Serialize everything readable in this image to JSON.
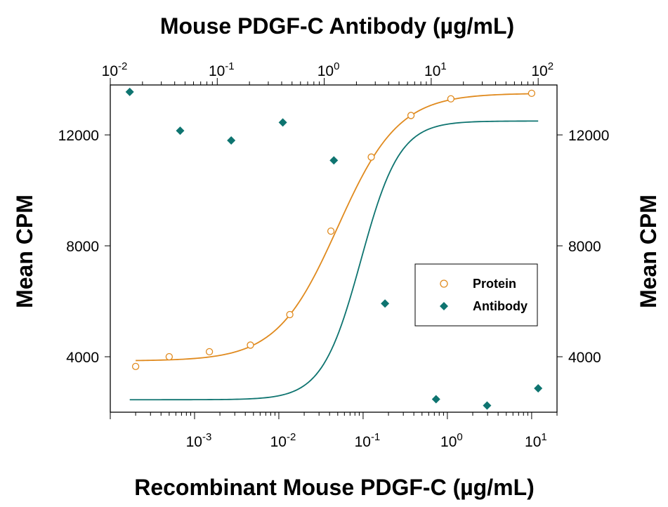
{
  "chart_data": {
    "type": "scatter",
    "top_axis_title": "Mouse PDGF-C Antibody (µg/mL)",
    "bottom_axis_title": "Recombinant Mouse PDGF-C (µg/mL)",
    "left_axis_title": "Mean CPM",
    "right_axis_title": "Mean CPM",
    "bottom_xlim": [
      0.0001,
      20
    ],
    "bottom_scale": "log",
    "bottom_ticks": [
      {
        "value": 0.001,
        "base": "10",
        "exp": "-3"
      },
      {
        "value": 0.01,
        "base": "10",
        "exp": "-2"
      },
      {
        "value": 0.1,
        "base": "10",
        "exp": "-1"
      },
      {
        "value": 1,
        "base": "10",
        "exp": "0"
      },
      {
        "value": 10,
        "base": "10",
        "exp": "1"
      }
    ],
    "top_xlim": [
      0.01,
      150
    ],
    "top_scale": "log",
    "top_ticks": [
      {
        "value": 0.01,
        "base": "10",
        "exp": "-2"
      },
      {
        "value": 0.1,
        "base": "10",
        "exp": "-1"
      },
      {
        "value": 1,
        "base": "10",
        "exp": "0"
      },
      {
        "value": 10,
        "base": "10",
        "exp": "1"
      },
      {
        "value": 100,
        "base": "10",
        "exp": "2"
      }
    ],
    "left_ylim": [
      2000,
      13800
    ],
    "left_ticks": [
      {
        "value": 4000,
        "label": "4000"
      },
      {
        "value": 8000,
        "label": "8000"
      },
      {
        "value": 12000,
        "label": "12000"
      }
    ],
    "right_ticks": [
      {
        "value": 4000,
        "label": "4000"
      },
      {
        "value": 8000,
        "label": "8000"
      },
      {
        "value": 12000,
        "label": "12000"
      }
    ],
    "grid": false,
    "legend_position": "center-right",
    "series": [
      {
        "name": "Protein",
        "axis": "bottom-left",
        "marker": "open-circle",
        "color": "#E08A1E",
        "points": [
          {
            "x": 0.0002,
            "y": 3650
          },
          {
            "x": 0.0005,
            "y": 4000
          },
          {
            "x": 0.0015,
            "y": 4180
          },
          {
            "x": 0.0046,
            "y": 4420
          },
          {
            "x": 0.0135,
            "y": 5520
          },
          {
            "x": 0.0415,
            "y": 8530
          },
          {
            "x": 0.125,
            "y": 11200
          },
          {
            "x": 0.37,
            "y": 12700
          },
          {
            "x": 1.1,
            "y": 13300
          },
          {
            "x": 10,
            "y": 13500
          }
        ],
        "fit": {
          "bottom": 3850,
          "top": 13500,
          "ec50": 0.05,
          "hill": 1.2
        }
      },
      {
        "name": "Antibody",
        "axis": "top-right",
        "marker": "filled-diamond",
        "color": "#0E7470",
        "points": [
          {
            "x": 0.0152,
            "y": 13550
          },
          {
            "x": 0.045,
            "y": 12150
          },
          {
            "x": 0.135,
            "y": 11800
          },
          {
            "x": 0.41,
            "y": 12450
          },
          {
            "x": 1.23,
            "y": 11080
          },
          {
            "x": 3.7,
            "y": 5920
          },
          {
            "x": 11.1,
            "y": 2470
          },
          {
            "x": 33.3,
            "y": 2240
          },
          {
            "x": 100,
            "y": 2860
          }
        ],
        "fit": {
          "bottom": 2450,
          "top": 12500,
          "ec50": 2.2,
          "hill": 2.4
        }
      }
    ]
  }
}
